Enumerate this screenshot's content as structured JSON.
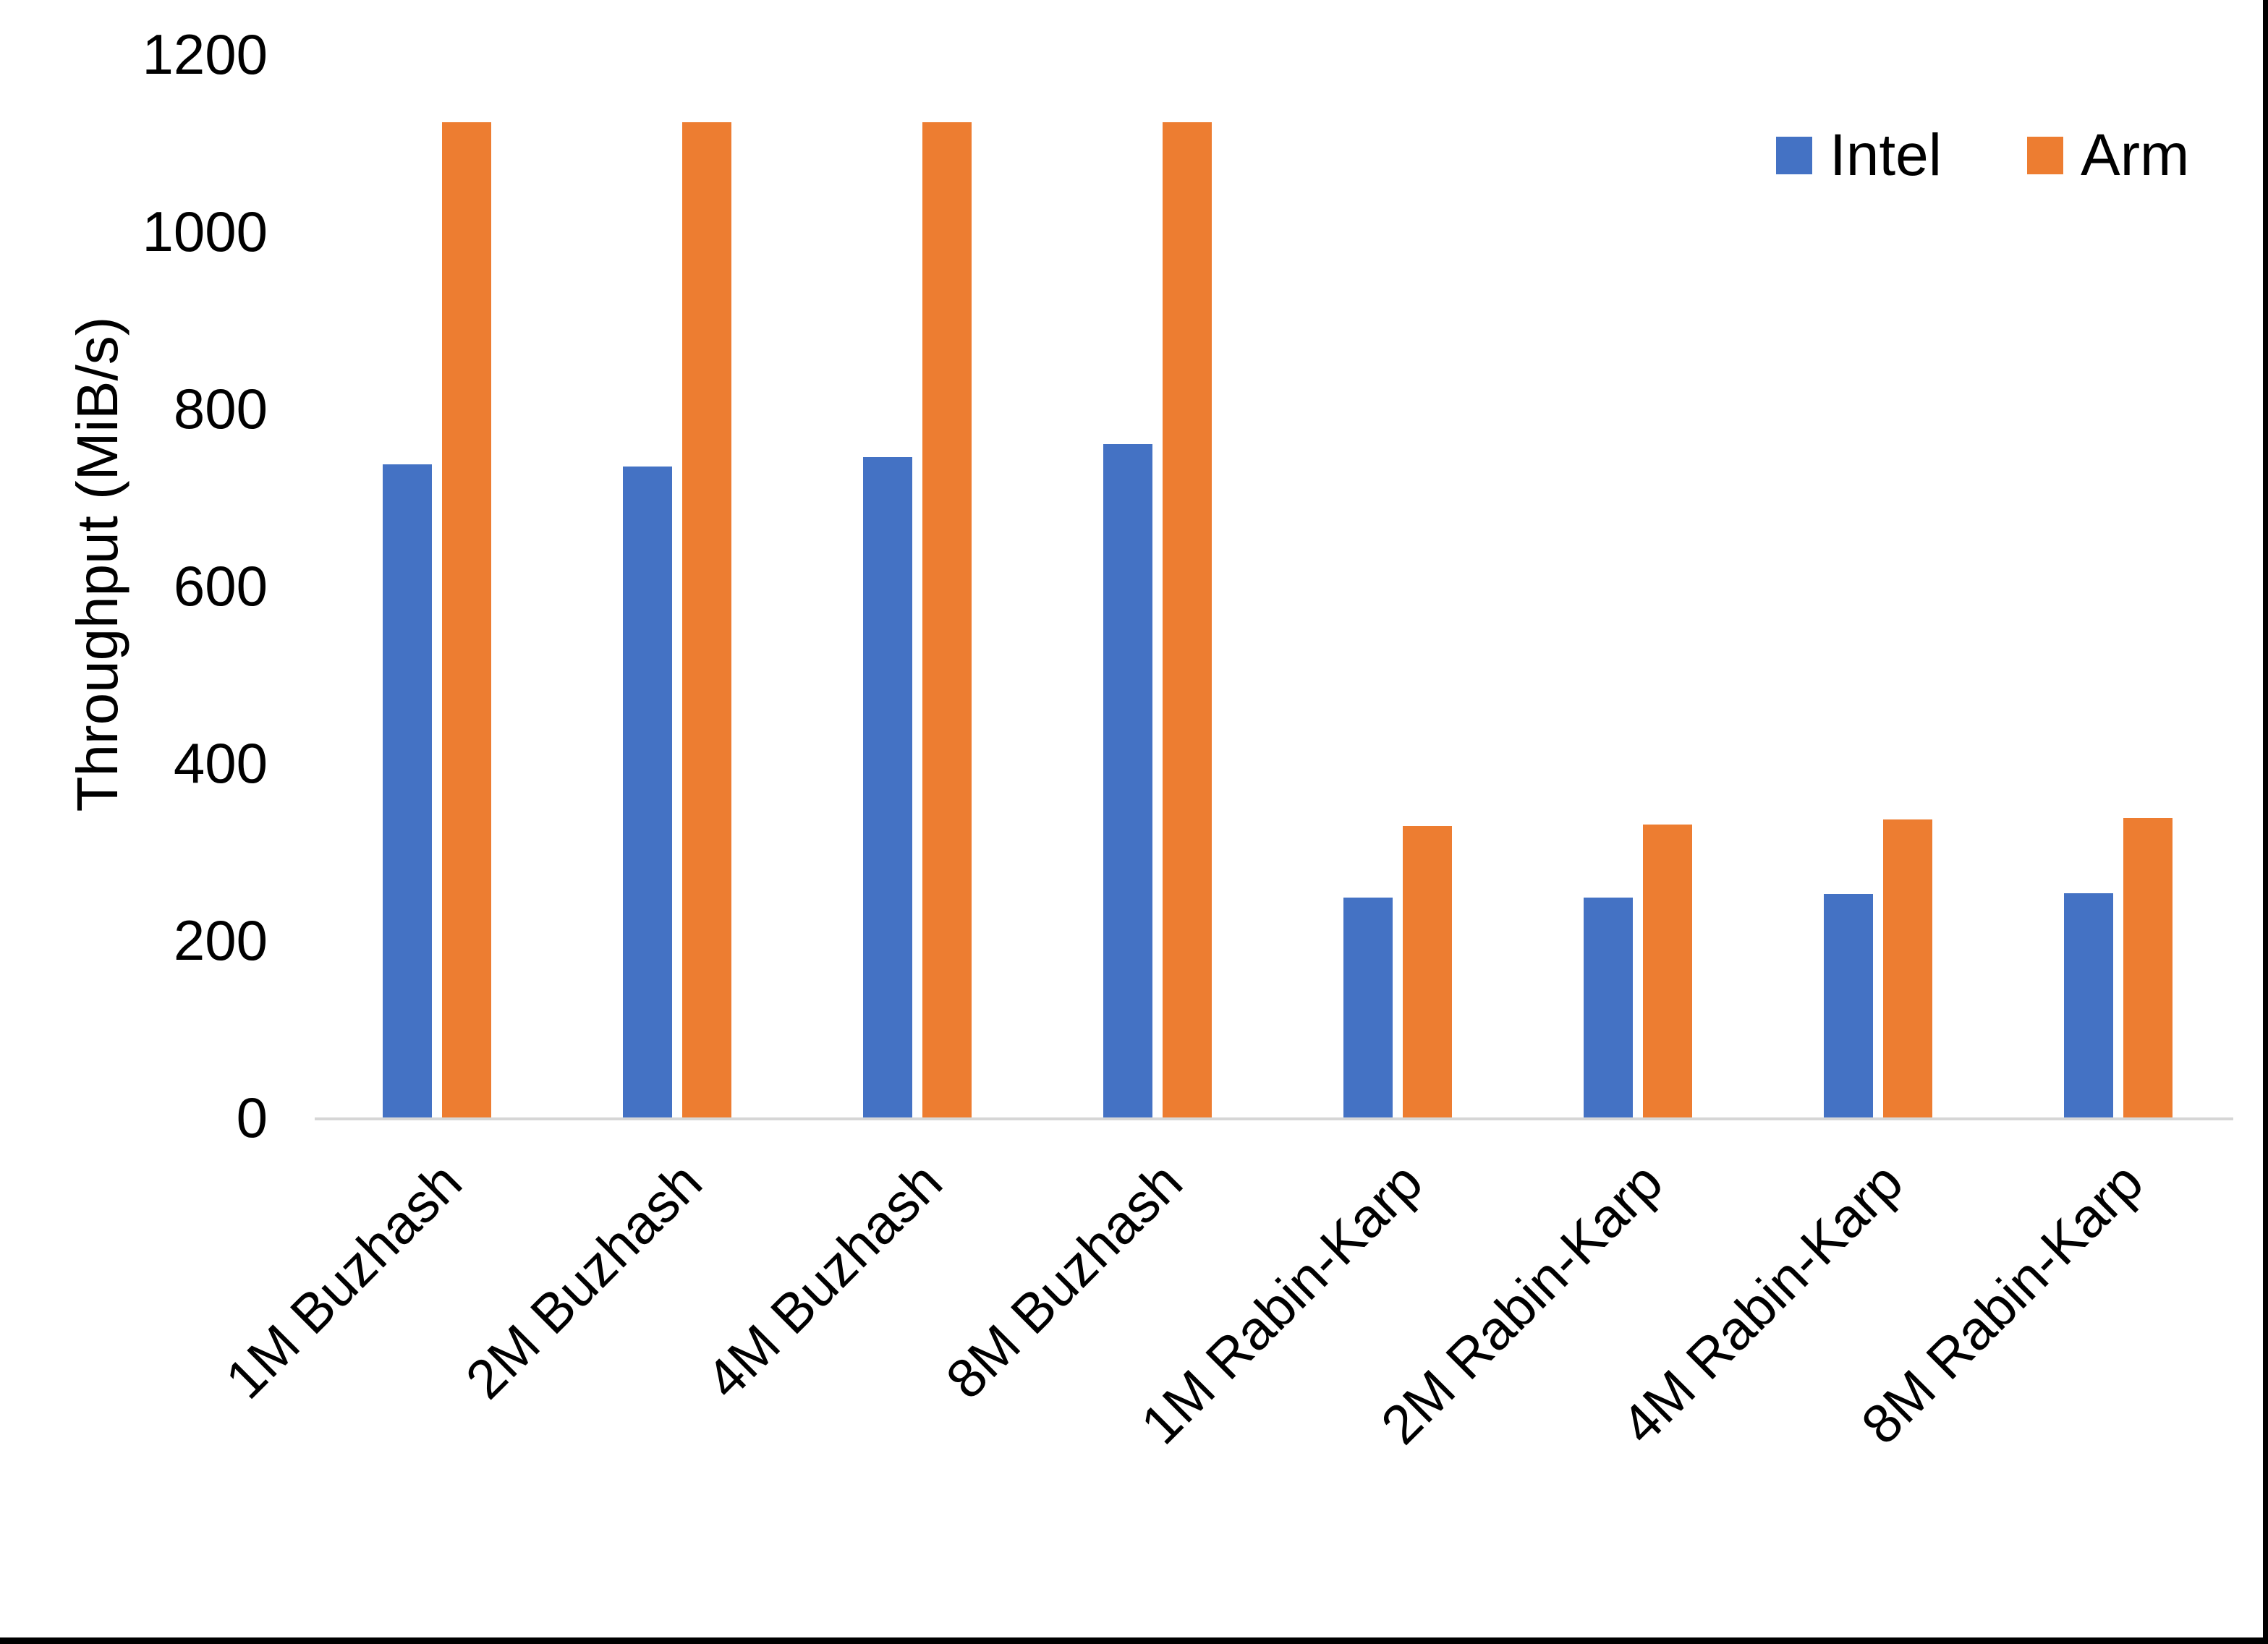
{
  "figure": {
    "background": "#ffffff",
    "frame_border_color": "#000000"
  },
  "chart_data": {
    "type": "bar",
    "title": "",
    "xlabel": "",
    "ylabel": "Throughput (MiB/s)",
    "categories": [
      "1M Buzhash",
      "2M Buzhash",
      "4M Buzhash",
      "8M Buzhash",
      "1M Rabin-Karp",
      "2M Rabin-Karp",
      "4M Rabin-Karp",
      "8M Rabin-Karp"
    ],
    "series": [
      {
        "name": "Intel",
        "color": "#4472C4",
        "values": [
          737,
          735,
          745,
          760,
          248,
          248,
          252,
          253
        ]
      },
      {
        "name": "Arm",
        "color": "#ED7D31",
        "values": [
          1123,
          1123,
          1123,
          1123,
          329,
          331,
          336,
          338
        ]
      }
    ],
    "ylim": [
      0,
      1200
    ],
    "yticks": [
      0,
      200,
      400,
      600,
      800,
      1000,
      1200
    ],
    "grid": false,
    "legend_position": "top-right",
    "axis_line_color": "#d6d6d6",
    "text_color": "#000000"
  }
}
